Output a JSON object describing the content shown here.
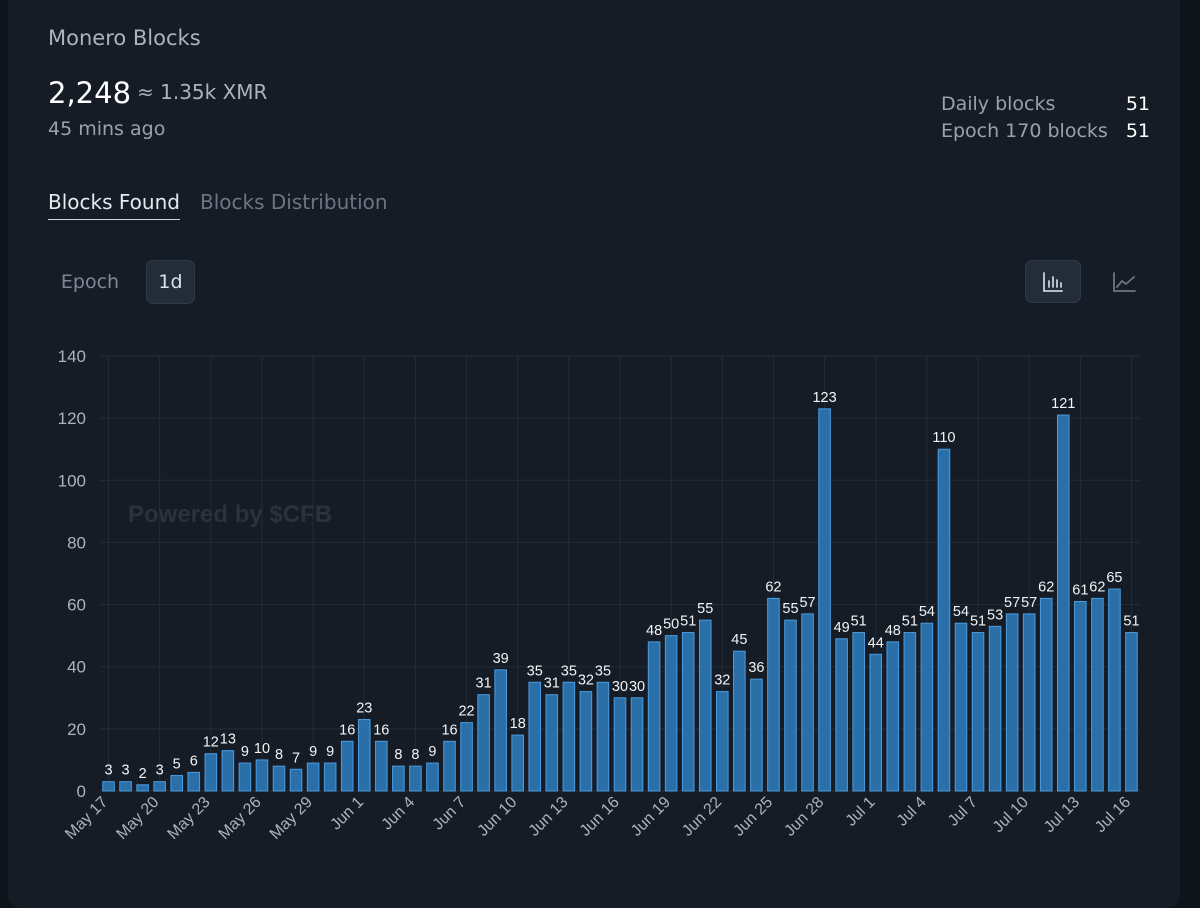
{
  "header": {
    "title": "Monero Blocks",
    "total_blocks": "2,248",
    "xmr_approx": "≈ 1.35k XMR",
    "time_ago": "45 mins ago"
  },
  "stats": [
    {
      "label": "Daily blocks",
      "value": "51"
    },
    {
      "label": "Epoch 170 blocks",
      "value": "51"
    }
  ],
  "tabs": [
    {
      "label": "Blocks Found",
      "active": true
    },
    {
      "label": "Blocks Distribution",
      "active": false
    }
  ],
  "granularity": [
    {
      "label": "Epoch",
      "active": false
    },
    {
      "label": "1d",
      "active": true
    }
  ],
  "chart_controls": [
    {
      "icon": "bar-chart-icon",
      "active": true
    },
    {
      "icon": "line-chart-icon",
      "active": false
    }
  ],
  "watermark": "Powered by $CFB",
  "colors": {
    "bar_fill": "#2b6fa8",
    "bar_stroke": "#4a9be0",
    "gridline": "#222c38",
    "axis_text": "#aab3bf"
  },
  "chart_data": {
    "type": "bar",
    "x": [
      "May 17",
      "May 18",
      "May 19",
      "May 20",
      "May 21",
      "May 22",
      "May 23",
      "May 24",
      "May 25",
      "May 26",
      "May 27",
      "May 28",
      "May 29",
      "May 30",
      "May 31",
      "Jun 1",
      "Jun 2",
      "Jun 3",
      "Jun 4",
      "Jun 5",
      "Jun 6",
      "Jun 7",
      "Jun 8",
      "Jun 9",
      "Jun 10",
      "Jun 11",
      "Jun 12",
      "Jun 13",
      "Jun 14",
      "Jun 15",
      "Jun 16",
      "Jun 17",
      "Jun 18",
      "Jun 19",
      "Jun 20",
      "Jun 21",
      "Jun 22",
      "Jun 23",
      "Jun 24",
      "Jun 25",
      "Jun 26",
      "Jun 27",
      "Jun 28",
      "Jun 29",
      "Jun 30",
      "Jul 1",
      "Jul 2",
      "Jul 3",
      "Jul 4",
      "Jul 5",
      "Jul 6",
      "Jul 7",
      "Jul 8",
      "Jul 9",
      "Jul 10",
      "Jul 11",
      "Jul 12",
      "Jul 13",
      "Jul 14",
      "Jul 15",
      "Jul 16"
    ],
    "values": [
      3,
      3,
      2,
      3,
      5,
      6,
      12,
      13,
      9,
      10,
      8,
      7,
      9,
      9,
      16,
      23,
      16,
      8,
      8,
      9,
      16,
      22,
      31,
      39,
      18,
      35,
      31,
      35,
      32,
      35,
      30,
      30,
      48,
      50,
      51,
      55,
      32,
      45,
      36,
      62,
      55,
      57,
      123,
      49,
      51,
      44,
      48,
      51,
      54,
      110,
      54,
      51,
      53,
      57,
      57,
      62,
      121,
      61,
      62,
      65,
      51
    ],
    "x_tick_labels": [
      "May 17",
      "May 20",
      "May 23",
      "May 26",
      "May 29",
      "Jun 1",
      "Jun 4",
      "Jun 7",
      "Jun 10",
      "Jun 13",
      "Jun 16",
      "Jun 19",
      "Jun 22",
      "Jun 25",
      "Jun 28",
      "Jul 1",
      "Jul 4",
      "Jul 7",
      "Jul 10",
      "Jul 13",
      "Jul 16"
    ],
    "y_ticks": [
      0,
      20,
      40,
      60,
      80,
      100,
      120,
      140
    ],
    "ylim": [
      0,
      140
    ],
    "grid": true,
    "data_labels": true
  }
}
